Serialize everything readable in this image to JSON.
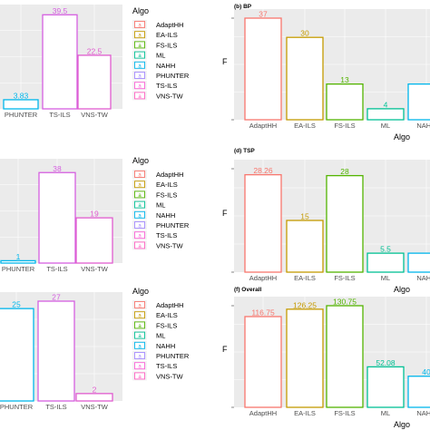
{
  "legend": {
    "title": "Algo",
    "entries": [
      {
        "label": "AdaptHH",
        "color": "#f8766d"
      },
      {
        "label": "EA-ILS",
        "color": "#c49a00"
      },
      {
        "label": "FS-ILS",
        "color": "#53b400"
      },
      {
        "label": "ML",
        "color": "#00c094"
      },
      {
        "label": "NAHH",
        "color": "#00b6eb"
      },
      {
        "label": "PHUNTER",
        "color": "#a58aff"
      },
      {
        "label": "TS-ILS",
        "color": "#fb61d7"
      },
      {
        "label": "VNS-TW",
        "color": "#ff61c3"
      }
    ],
    "glyph": "a"
  },
  "chart_data": [
    {
      "type": "bar",
      "title": "",
      "xlabel": "",
      "ylabel": "",
      "ylim": [
        0,
        40
      ],
      "categories": [
        "PHUNTER",
        "TS-ILS",
        "VNS-TW"
      ],
      "values": [
        3.83,
        39.5,
        22.5
      ],
      "labels": [
        "3.83",
        "39.5",
        "22.5"
      ],
      "colors": [
        "#00b6eb",
        "#d55fe0",
        "#e05ccf"
      ]
    },
    {
      "type": "bar",
      "title": "(b) BP",
      "xlabel": "Algo",
      "ylabel": "F",
      "ylim": [
        0,
        37
      ],
      "categories": [
        "AdaptHH",
        "EA-ILS",
        "FS-ILS",
        "ML",
        "NAHH"
      ],
      "values": [
        37,
        30,
        13,
        4,
        13
      ],
      "labels": [
        "37",
        "30",
        "13",
        "4",
        ""
      ],
      "colors": [
        "#f8766d",
        "#c49a00",
        "#53b400",
        "#00c094",
        "#00b6eb"
      ]
    },
    {
      "type": "bar",
      "title": "",
      "xlabel": "",
      "ylabel": "",
      "ylim": [
        0,
        40
      ],
      "categories": [
        "PHUNTER",
        "TS-ILS",
        "VNS-TW"
      ],
      "values": [
        1,
        38,
        19
      ],
      "labels": [
        "1",
        "38",
        "19"
      ],
      "colors": [
        "#00b6eb",
        "#d55fe0",
        "#e05ccf"
      ]
    },
    {
      "type": "bar",
      "title": "(d) TSP",
      "xlabel": "Algo",
      "ylabel": "F",
      "ylim": [
        0,
        30
      ],
      "categories": [
        "AdaptHH",
        "EA-ILS",
        "FS-ILS",
        "ML",
        "NAHH"
      ],
      "values": [
        28.26,
        15,
        28,
        5.5,
        5.5
      ],
      "labels": [
        "28.26",
        "15",
        "28",
        "5.5",
        ""
      ],
      "colors": [
        "#f8766d",
        "#c49a00",
        "#53b400",
        "#00c094",
        "#00b6eb"
      ]
    },
    {
      "type": "bar",
      "title": "",
      "xlabel": "",
      "ylabel": "",
      "ylim": [
        0,
        27
      ],
      "categories": [
        "PHUNTER",
        "TS-ILS",
        "VNS-TW"
      ],
      "values": [
        25,
        27,
        2
      ],
      "labels": [
        "25",
        "27",
        "2"
      ],
      "colors": [
        "#00b6eb",
        "#d55fe0",
        "#e05ccf"
      ]
    },
    {
      "type": "bar",
      "title": "(f) Overall",
      "xlabel": "Algo",
      "ylabel": "F",
      "ylim": [
        0,
        130.75
      ],
      "categories": [
        "AdaptHH",
        "EA-ILS",
        "FS-ILS",
        "ML",
        "NAHH"
      ],
      "values": [
        116.75,
        126.25,
        130.75,
        52.08,
        40
      ],
      "labels": [
        "116.75",
        "126.25",
        "130.75",
        "52.08",
        "40"
      ],
      "colors": [
        "#f8766d",
        "#c49a00",
        "#53b400",
        "#00c094",
        "#00b6eb"
      ]
    }
  ]
}
